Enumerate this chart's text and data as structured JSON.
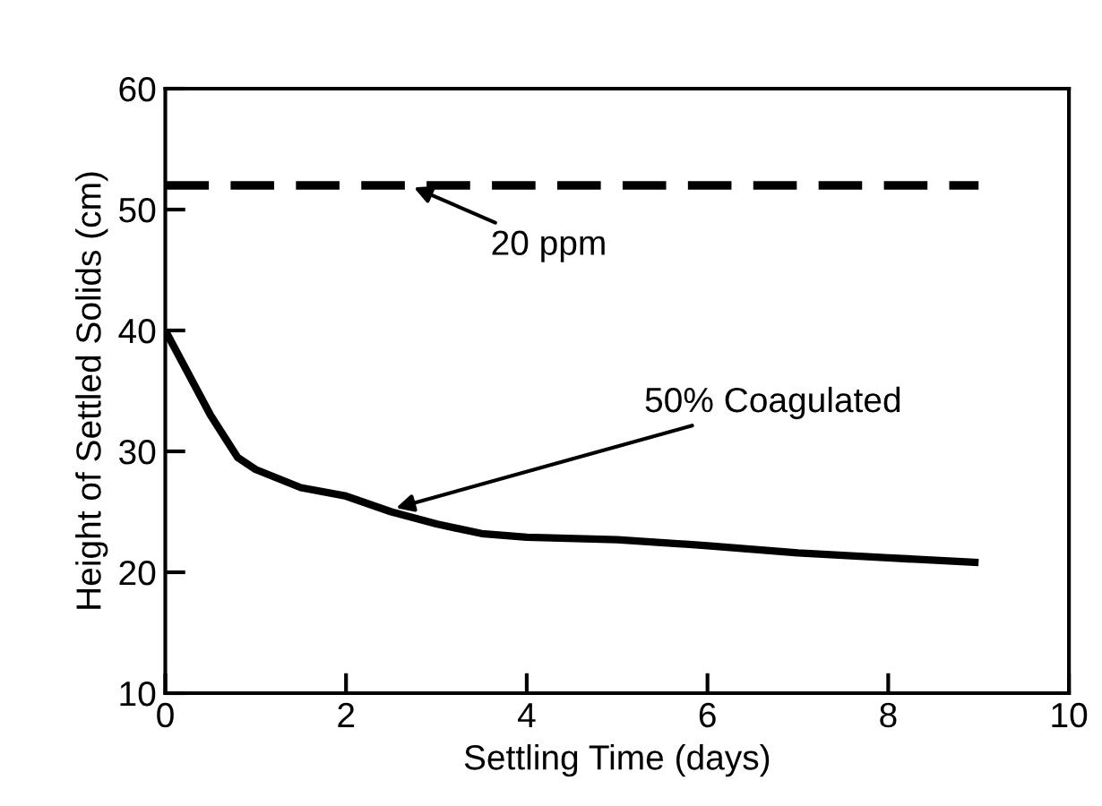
{
  "chart_data": {
    "type": "line",
    "xlabel": "Settling Time (days)",
    "ylabel": "Height of Settled Solids (cm)",
    "xlim": [
      0,
      10
    ],
    "ylim": [
      10,
      60
    ],
    "xticks": [
      0,
      2,
      4,
      6,
      8,
      10
    ],
    "yticks": [
      10,
      20,
      30,
      40,
      50,
      60
    ],
    "grid": false,
    "marker": "none",
    "series": [
      {
        "x": [
          0,
          9
        ],
        "values": [
          52,
          52
        ],
        "color": "#000000",
        "line_style": "dashed"
      },
      {
        "x": [
          0,
          0.25,
          0.5,
          0.8,
          1,
          1.5,
          2,
          2.5,
          3,
          3.5,
          4,
          5,
          6,
          7,
          8,
          9
        ],
        "values": [
          40,
          36.5,
          33,
          29.5,
          28.5,
          27,
          26.3,
          25,
          24,
          23.2,
          22.9,
          22.7,
          22.2,
          21.6,
          21.2,
          20.8
        ],
        "color": "#000000",
        "line_style": "solid"
      }
    ],
    "annotations": [
      {
        "text": "20 ppm",
        "x": 2.7,
        "y": 52
      },
      {
        "text": "50% Coagulated",
        "x": 2.5,
        "y": 25.2
      }
    ]
  }
}
